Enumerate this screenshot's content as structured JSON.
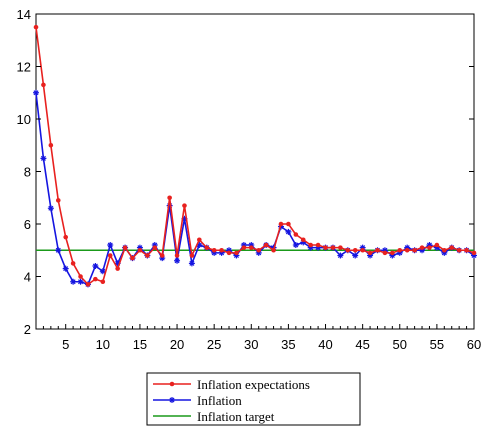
{
  "chart_data": {
    "type": "line",
    "title": "",
    "xlabel": "",
    "ylabel": "",
    "xlim": [
      1,
      60
    ],
    "ylim": [
      2,
      14
    ],
    "xticks": [
      5,
      10,
      15,
      20,
      25,
      30,
      35,
      40,
      45,
      50,
      55,
      60
    ],
    "yticks": [
      2,
      4,
      6,
      8,
      10,
      12,
      14
    ],
    "grid": false,
    "legend_position": "bottom-center",
    "series": [
      {
        "name": "Inflation expectations",
        "color": "#e8211f",
        "marker": "dot",
        "values": [
          13.5,
          11.3,
          9.0,
          6.9,
          5.5,
          4.5,
          4.0,
          3.7,
          3.9,
          3.8,
          4.8,
          4.3,
          5.1,
          4.7,
          5.0,
          4.8,
          5.1,
          4.8,
          7.0,
          4.8,
          6.7,
          4.8,
          5.4,
          5.1,
          5.0,
          5.0,
          4.9,
          4.9,
          5.1,
          5.1,
          5.0,
          5.2,
          5.0,
          6.0,
          6.0,
          5.6,
          5.4,
          5.2,
          5.2,
          5.1,
          5.1,
          5.1,
          5.0,
          5.0,
          5.0,
          4.9,
          5.0,
          4.9,
          4.9,
          5.0,
          5.0,
          5.0,
          5.1,
          5.1,
          5.2,
          5.0,
          5.1,
          5.0,
          5.0,
          4.9
        ]
      },
      {
        "name": "Inflation",
        "color": "#1515e0",
        "marker": "star",
        "values": [
          11.0,
          8.5,
          6.6,
          5.0,
          4.3,
          3.8,
          3.8,
          3.7,
          4.4,
          4.2,
          5.2,
          4.5,
          5.1,
          4.7,
          5.1,
          4.8,
          5.2,
          4.7,
          6.7,
          4.6,
          6.2,
          4.5,
          5.2,
          5.1,
          4.9,
          4.9,
          5.0,
          4.8,
          5.2,
          5.2,
          4.9,
          5.2,
          5.1,
          5.9,
          5.7,
          5.2,
          5.3,
          5.1,
          5.1,
          5.1,
          5.1,
          4.8,
          5.0,
          4.8,
          5.1,
          4.8,
          5.0,
          5.0,
          4.8,
          4.9,
          5.1,
          5.0,
          5.0,
          5.2,
          5.1,
          4.9,
          5.1,
          5.0,
          5.0,
          4.8
        ]
      },
      {
        "name": "Inflation target",
        "color": "#1a9a1a",
        "marker": "none",
        "values": [
          5,
          5
        ]
      }
    ]
  }
}
